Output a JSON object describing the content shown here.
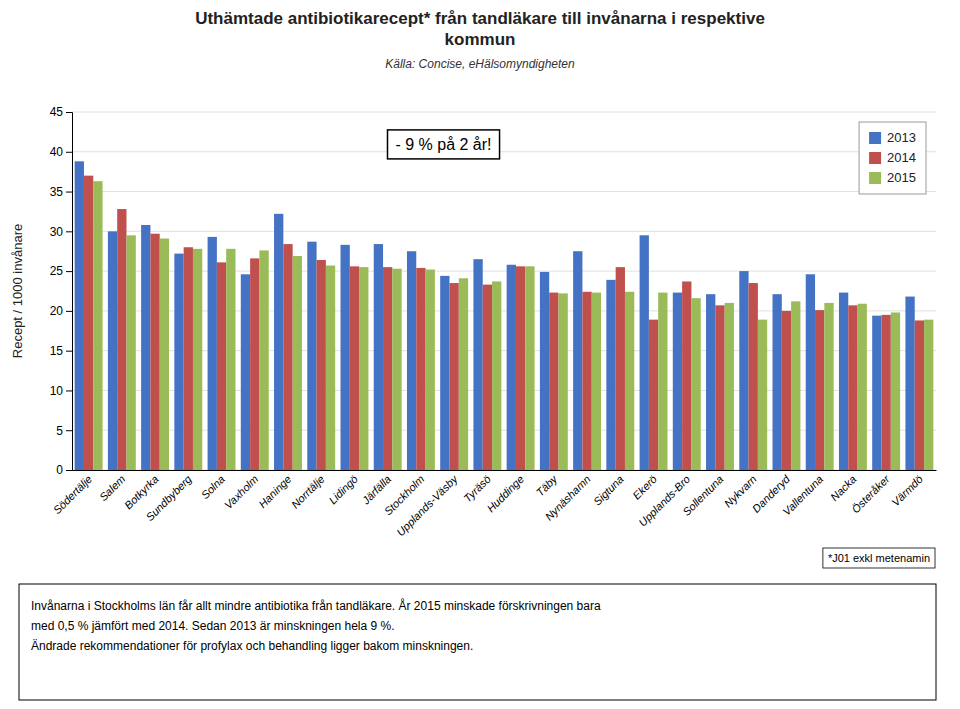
{
  "chart_data": {
    "type": "bar",
    "title": "Uthämtade antibiotikarecept* från tandläkare till invånarna i respektive\nkommun",
    "subtitle": "Källa: Concise, eHälsomyndigheten",
    "y_label": "Recept / 1000 invånare",
    "annotations": [
      "- 9 % på 2 år!",
      "*J01 exkl metenamin",
      "Invånarna i Stockholms län får allt mindre antibiotika från tandläkare. År 2015 minskade förskrivningen bara\nmed 0,5 % jämfört med 2014. Sedan 2013 är minskningen hela 9 %.\nÄndrade rekommendationer för profylax och behandling ligger bakom minskningen."
    ],
    "categories": [
      "Södertälje",
      "Salem",
      "Botkyrka",
      "Sundbyberg",
      "Solna",
      "Vaxholm",
      "Haninge",
      "Norrtälje",
      "Lidingö",
      "Järfälla",
      "Stockholm",
      "Upplands-Väsby",
      "Tyräsö",
      "Huddinge",
      "Täby",
      "Nynäshamn",
      "Sigtuna",
      "Ekerö",
      "Upplands-Bro",
      "Sollentuna",
      "Nykvarn",
      "Danderyd",
      "Vallentuna",
      "Nacka",
      "Österåker",
      "Värmdö"
    ],
    "series": [
      {
        "name": "2013",
        "color": "#4472C4",
        "values": [
          38.8,
          30.0,
          30.8,
          27.2,
          29.3,
          24.6,
          32.2,
          28.7,
          28.3,
          28.4,
          27.5,
          24.4,
          26.5,
          25.8,
          24.9,
          27.5,
          23.9,
          29.5,
          22.3,
          22.1,
          25.0,
          22.1,
          24.6,
          22.3,
          19.4,
          21.8
        ]
      },
      {
        "name": "2014",
        "color": "#C0504D",
        "values": [
          37.0,
          32.8,
          29.7,
          28.0,
          26.1,
          26.6,
          28.4,
          26.4,
          25.6,
          25.5,
          25.4,
          23.5,
          23.3,
          25.6,
          22.3,
          22.4,
          25.5,
          18.9,
          23.7,
          20.7,
          23.5,
          20.0,
          20.1,
          20.7,
          19.5,
          18.8
        ]
      },
      {
        "name": "2015",
        "color": "#9BBB59",
        "values": [
          36.3,
          29.5,
          29.1,
          27.8,
          27.8,
          27.6,
          26.9,
          25.7,
          25.5,
          25.3,
          25.2,
          24.1,
          23.7,
          25.6,
          22.2,
          22.3,
          22.4,
          22.3,
          21.6,
          21.0,
          18.9,
          21.2,
          21.0,
          20.9,
          19.8,
          18.9
        ]
      }
    ],
    "ylim": [
      0,
      45
    ],
    "yticks": [
      0,
      5,
      10,
      15,
      20,
      25,
      30,
      35,
      40,
      45
    ],
    "grid": true,
    "legend": "upper-right"
  }
}
